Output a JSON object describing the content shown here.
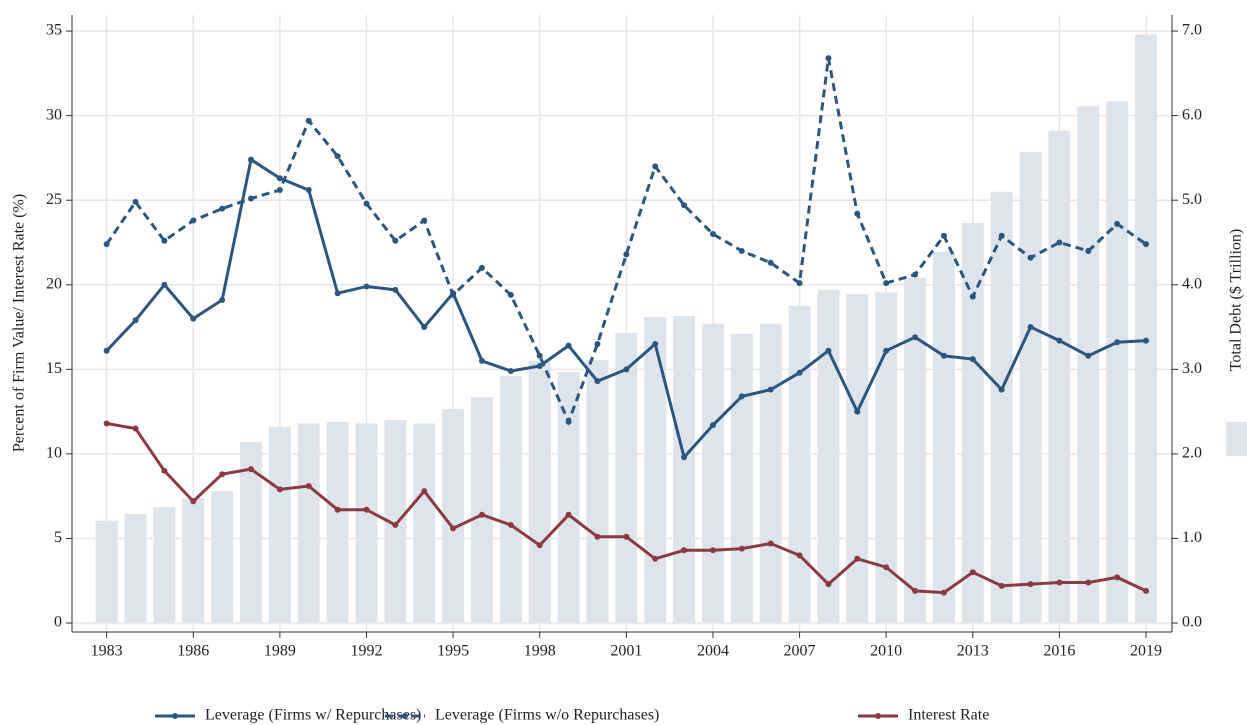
{
  "chart_data": {
    "type": "line",
    "y_label": "Percent of Firm Value/ Interest Rate (%)",
    "y2_label": "Total Debt ($ Trillion)",
    "x": [
      1983,
      1984,
      1985,
      1986,
      1987,
      1988,
      1989,
      1990,
      1991,
      1992,
      1993,
      1994,
      1995,
      1996,
      1997,
      1998,
      1999,
      2000,
      2001,
      2002,
      2003,
      2004,
      2005,
      2006,
      2007,
      2008,
      2009,
      2010,
      2011,
      2012,
      2013,
      2014,
      2015,
      2016,
      2017,
      2018,
      2019
    ],
    "series": [
      {
        "type": "bar",
        "axis": "y2",
        "color": "#dee4eb",
        "values": [
          1.21,
          1.29,
          1.37,
          1.48,
          1.56,
          2.14,
          2.32,
          2.36,
          2.38,
          2.36,
          2.4,
          2.36,
          2.53,
          2.67,
          2.92,
          3.1,
          2.97,
          3.11,
          3.43,
          3.62,
          3.63,
          3.54,
          3.42,
          3.54,
          3.75,
          3.94,
          3.89,
          3.91,
          4.08,
          4.39,
          4.73,
          5.1,
          5.57,
          5.82,
          6.11,
          6.17,
          6.96
        ]
      },
      {
        "name": "Leverage (Firms w/ Repurchases)",
        "color": "#2b5680",
        "dashed": false,
        "values": [
          16.1,
          17.9,
          20.0,
          18.0,
          19.1,
          27.4,
          26.3,
          25.6,
          19.5,
          19.9,
          19.7,
          17.5,
          19.5,
          15.5,
          14.9,
          15.2,
          16.4,
          14.3,
          15.0,
          16.5,
          9.8,
          11.7,
          13.4,
          13.8,
          14.8,
          16.1,
          12.5,
          16.1,
          16.9,
          15.8,
          15.6,
          13.8,
          17.5,
          16.7,
          15.8,
          16.6,
          16.7
        ]
      },
      {
        "name": "Leverage (Firms w/o Repurchases)",
        "color": "#2b5680",
        "dashed": true,
        "values": [
          22.4,
          24.9,
          22.6,
          23.8,
          24.5,
          25.1,
          25.6,
          29.7,
          27.6,
          24.8,
          22.6,
          23.8,
          19.4,
          21.0,
          19.4,
          15.8,
          11.9,
          16.5,
          21.8,
          27.0,
          24.7,
          23.0,
          22.0,
          21.3,
          20.1,
          33.4,
          24.2,
          20.1,
          20.6,
          22.9,
          19.3,
          22.9,
          21.6,
          22.5,
          22.0,
          23.6,
          22.4
        ]
      },
      {
        "name": "Interest Rate",
        "color": "#8c3a42",
        "dashed": false,
        "values": [
          11.8,
          11.5,
          9.0,
          7.2,
          8.8,
          9.1,
          7.9,
          8.1,
          6.7,
          6.7,
          5.8,
          7.8,
          5.6,
          6.4,
          5.8,
          4.6,
          6.4,
          5.1,
          5.1,
          3.8,
          4.3,
          4.3,
          4.4,
          4.7,
          4.0,
          2.3,
          3.8,
          3.3,
          1.9,
          1.8,
          3.0,
          2.2,
          2.3,
          2.4,
          2.4,
          2.7,
          1.9
        ]
      }
    ],
    "xlim": [
      1981.8,
      2019.9
    ],
    "xticks": [
      1983,
      1986,
      1989,
      1992,
      1995,
      1998,
      2001,
      2004,
      2007,
      2010,
      2013,
      2016,
      2019
    ],
    "ylim": [
      -0.53,
      35.95
    ],
    "yticks": [
      0,
      5,
      10,
      15,
      20,
      25,
      30,
      35
    ],
    "y2lim": [
      -0.106,
      7.19
    ],
    "y2ticks": [
      {
        "value": 0,
        "label": "0.0"
      },
      {
        "value": 1,
        "label": "1.0"
      },
      {
        "value": 2,
        "label": "2.0"
      },
      {
        "value": 3,
        "label": "3.0"
      },
      {
        "value": 4,
        "label": "4.0"
      },
      {
        "value": 5,
        "label": "5.0"
      },
      {
        "value": 6,
        "label": "6.0"
      },
      {
        "value": 7,
        "label": "7.0"
      }
    ],
    "grid": true,
    "legend": "bottom"
  }
}
